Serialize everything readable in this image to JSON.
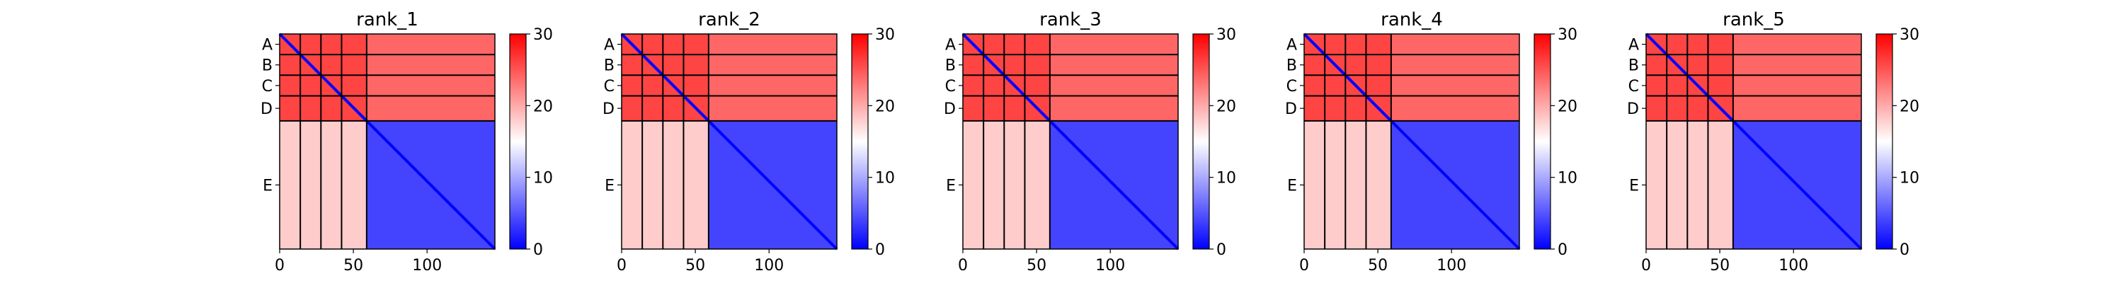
{
  "chart_data": [
    {
      "type": "heatmap",
      "title": "rank_1",
      "xticks": [
        0,
        50,
        100
      ],
      "xlim": [
        0,
        146
      ],
      "chain_labels": [
        "A",
        "B",
        "C",
        "D",
        "E"
      ],
      "chain_boundaries": [
        0,
        14,
        28,
        42,
        59,
        146
      ],
      "colorbar": {
        "min": 0,
        "max": 30,
        "ticks": [
          0,
          10,
          20,
          30
        ]
      },
      "colorscale": [
        "#0000ff",
        "#ffffff",
        "#ff0000"
      ],
      "block_levels": {
        "ABCD_vs_ABCD": 26,
        "ABCD_vs_E": 24,
        "E_vs_ABCD": 18,
        "E_vs_E": 4,
        "diagonal": 0
      }
    },
    {
      "type": "heatmap",
      "title": "rank_2",
      "xticks": [
        0,
        50,
        100
      ],
      "xlim": [
        0,
        146
      ],
      "chain_labels": [
        "A",
        "B",
        "C",
        "D",
        "E"
      ],
      "chain_boundaries": [
        0,
        14,
        28,
        42,
        59,
        146
      ],
      "colorbar": {
        "min": 0,
        "max": 30,
        "ticks": [
          0,
          10,
          20,
          30
        ]
      },
      "colorscale": [
        "#0000ff",
        "#ffffff",
        "#ff0000"
      ],
      "block_levels": {
        "ABCD_vs_ABCD": 26,
        "ABCD_vs_E": 24,
        "E_vs_ABCD": 18,
        "E_vs_E": 4,
        "diagonal": 0
      }
    },
    {
      "type": "heatmap",
      "title": "rank_3",
      "xticks": [
        0,
        50,
        100
      ],
      "xlim": [
        0,
        146
      ],
      "chain_labels": [
        "A",
        "B",
        "C",
        "D",
        "E"
      ],
      "chain_boundaries": [
        0,
        14,
        28,
        42,
        59,
        146
      ],
      "colorbar": {
        "min": 0,
        "max": 30,
        "ticks": [
          0,
          10,
          20,
          30
        ]
      },
      "colorscale": [
        "#0000ff",
        "#ffffff",
        "#ff0000"
      ],
      "block_levels": {
        "ABCD_vs_ABCD": 26,
        "ABCD_vs_E": 24,
        "E_vs_ABCD": 18,
        "E_vs_E": 4,
        "diagonal": 0
      }
    },
    {
      "type": "heatmap",
      "title": "rank_4",
      "xticks": [
        0,
        50,
        100
      ],
      "xlim": [
        0,
        146
      ],
      "chain_labels": [
        "A",
        "B",
        "C",
        "D",
        "E"
      ],
      "chain_boundaries": [
        0,
        14,
        28,
        42,
        59,
        146
      ],
      "colorbar": {
        "min": 0,
        "max": 30,
        "ticks": [
          0,
          10,
          20,
          30
        ]
      },
      "colorscale": [
        "#0000ff",
        "#ffffff",
        "#ff0000"
      ],
      "block_levels": {
        "ABCD_vs_ABCD": 26,
        "ABCD_vs_E": 24,
        "E_vs_ABCD": 18,
        "E_vs_E": 4,
        "diagonal": 0
      }
    },
    {
      "type": "heatmap",
      "title": "rank_5",
      "xticks": [
        0,
        50,
        100
      ],
      "xlim": [
        0,
        146
      ],
      "chain_labels": [
        "A",
        "B",
        "C",
        "D",
        "E"
      ],
      "chain_boundaries": [
        0,
        14,
        28,
        42,
        59,
        146
      ],
      "colorbar": {
        "min": 0,
        "max": 30,
        "ticks": [
          0,
          10,
          20,
          30
        ]
      },
      "colorscale": [
        "#0000ff",
        "#ffffff",
        "#ff0000"
      ],
      "block_levels": {
        "ABCD_vs_ABCD": 26,
        "ABCD_vs_E": 24,
        "E_vs_ABCD": 18,
        "E_vs_E": 4,
        "diagonal": 0
      }
    }
  ]
}
